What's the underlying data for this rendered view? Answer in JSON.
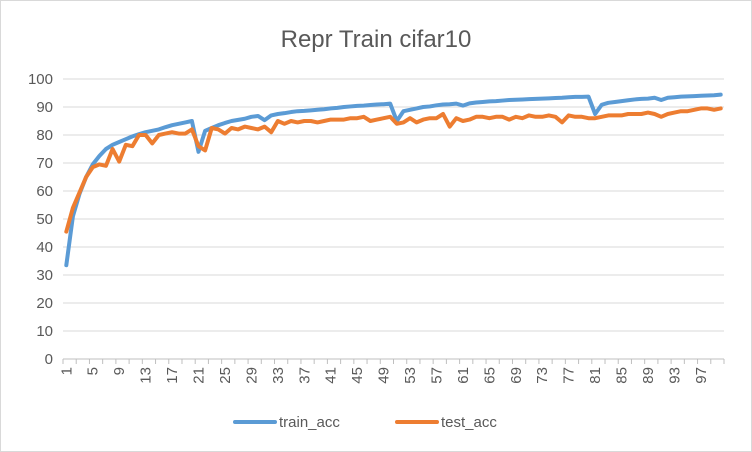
{
  "chart_data": {
    "type": "line",
    "title": "Repr Train cifar10",
    "xlabel": "",
    "ylabel": "",
    "ylim": [
      0,
      100
    ],
    "yticks": [
      0,
      10,
      20,
      30,
      40,
      50,
      60,
      70,
      80,
      90,
      100
    ],
    "x": [
      1,
      2,
      3,
      4,
      5,
      6,
      7,
      8,
      9,
      10,
      11,
      12,
      13,
      14,
      15,
      16,
      17,
      18,
      19,
      20,
      21,
      22,
      23,
      24,
      25,
      26,
      27,
      28,
      29,
      30,
      31,
      32,
      33,
      34,
      35,
      36,
      37,
      38,
      39,
      40,
      41,
      42,
      43,
      44,
      45,
      46,
      47,
      48,
      49,
      50,
      51,
      52,
      53,
      54,
      55,
      56,
      57,
      58,
      59,
      60,
      61,
      62,
      63,
      64,
      65,
      66,
      67,
      68,
      69,
      70,
      71,
      72,
      73,
      74,
      75,
      76,
      77,
      78,
      79,
      80,
      81,
      82,
      83,
      84,
      85,
      86,
      87,
      88,
      89,
      90,
      91,
      92,
      93,
      94,
      95,
      96,
      97,
      98,
      99,
      100
    ],
    "xtick_labels": [
      "1",
      "5",
      "9",
      "13",
      "17",
      "21",
      "25",
      "29",
      "33",
      "37",
      "41",
      "45",
      "49",
      "53",
      "57",
      "61",
      "65",
      "69",
      "73",
      "77",
      "81",
      "85",
      "89",
      "93",
      "97"
    ],
    "xtick_every": 2,
    "grid": true,
    "legend_position": "bottom",
    "series": [
      {
        "name": "train_acc",
        "color": "#5b9bd5",
        "values": [
          33.5,
          51,
          59,
          65,
          69.5,
          72.5,
          75,
          76.5,
          77.5,
          78.5,
          79.5,
          80.3,
          81,
          81.5,
          82,
          82.8,
          83.5,
          84,
          84.5,
          85,
          74,
          81.5,
          82.5,
          83.5,
          84.3,
          85,
          85.4,
          85.8,
          86.5,
          86.8,
          85.3,
          87,
          87.5,
          87.8,
          88.2,
          88.5,
          88.6,
          88.8,
          89,
          89.2,
          89.5,
          89.7,
          90,
          90.2,
          90.4,
          90.5,
          90.7,
          90.9,
          91,
          91.2,
          85,
          88.5,
          89,
          89.5,
          90,
          90.2,
          90.6,
          90.9,
          91,
          91.2,
          90.5,
          91.3,
          91.6,
          91.8,
          92,
          92.1,
          92.3,
          92.5,
          92.6,
          92.7,
          92.8,
          92.9,
          93,
          93.1,
          93.2,
          93.3,
          93.5,
          93.6,
          93.6,
          93.7,
          87.5,
          90.8,
          91.5,
          91.8,
          92.1,
          92.4,
          92.7,
          92.9,
          93,
          93.3,
          92.5,
          93.3,
          93.5,
          93.7,
          93.8,
          93.9,
          94,
          94.1,
          94.2,
          94.4
        ]
      },
      {
        "name": "test_acc",
        "color": "#ed7d31",
        "values": [
          45.5,
          54,
          59.5,
          65,
          68.5,
          69.5,
          69,
          75,
          70.5,
          76.5,
          76,
          80,
          80,
          77,
          80,
          80.5,
          81,
          80.5,
          80.5,
          82,
          76,
          74.5,
          82.5,
          82,
          80.5,
          82.5,
          82,
          83,
          82.5,
          82,
          83,
          81,
          85,
          84,
          85,
          84.5,
          85,
          85,
          84.5,
          85,
          85.5,
          85.5,
          85.5,
          86,
          86,
          86.5,
          85,
          85.5,
          86,
          86.5,
          84,
          84.5,
          86,
          84.5,
          85.5,
          86,
          86,
          87.5,
          83,
          86,
          85,
          85.5,
          86.5,
          86.5,
          86,
          86.5,
          86.5,
          85.5,
          86.5,
          86,
          87,
          86.5,
          86.5,
          87,
          86.5,
          84.5,
          87,
          86.5,
          86.5,
          86,
          86,
          86.5,
          87,
          87,
          87,
          87.5,
          87.5,
          87.5,
          88,
          87.5,
          86.5,
          87.5,
          88,
          88.5,
          88.5,
          89,
          89.5,
          89.5,
          89,
          89.5
        ]
      }
    ]
  }
}
